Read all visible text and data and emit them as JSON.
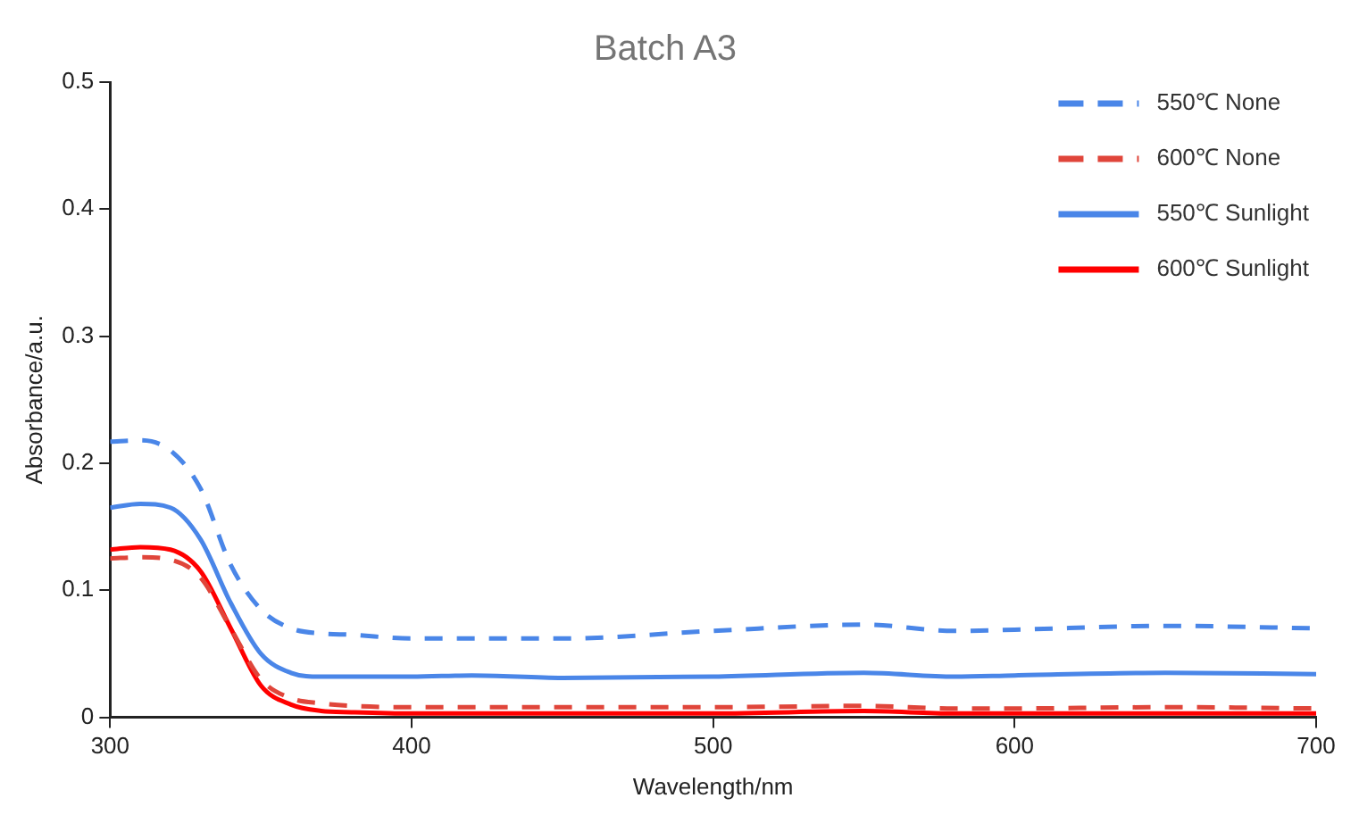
{
  "chart_data": {
    "type": "line",
    "title": "Batch A3",
    "xlabel": "Wavelength/nm",
    "ylabel": "Absorbance/a.u.",
    "x": [
      300,
      310,
      320,
      330,
      340,
      350,
      360,
      370,
      380,
      400,
      420,
      450,
      500,
      550,
      580,
      600,
      650,
      700
    ],
    "xlim": [
      300,
      700
    ],
    "xticks": [
      300,
      400,
      500,
      600,
      700
    ],
    "ylim": [
      0,
      0.5
    ],
    "yticks": [
      0,
      0.1,
      0.2,
      0.3,
      0.4,
      0.5
    ],
    "grid": false,
    "legend": "top right",
    "marker": "none",
    "series": [
      {
        "name": "550℃ None",
        "color": "#4a86e8",
        "line_style": "dashed",
        "values": [
          0.217,
          0.218,
          0.21,
          0.18,
          0.12,
          0.085,
          0.07,
          0.066,
          0.065,
          0.062,
          0.062,
          0.062,
          0.068,
          0.073,
          0.068,
          0.069,
          0.072,
          0.07
        ]
      },
      {
        "name": "600℃ None",
        "color": "#e0453a",
        "line_style": "dashed",
        "values": [
          0.125,
          0.126,
          0.124,
          0.11,
          0.07,
          0.03,
          0.015,
          0.011,
          0.009,
          0.008,
          0.008,
          0.008,
          0.008,
          0.009,
          0.007,
          0.007,
          0.008,
          0.007
        ]
      },
      {
        "name": "550℃ Sunlight",
        "color": "#4a86e8",
        "line_style": "solid",
        "values": [
          0.165,
          0.168,
          0.165,
          0.14,
          0.09,
          0.05,
          0.035,
          0.032,
          0.032,
          0.032,
          0.033,
          0.031,
          0.032,
          0.035,
          0.032,
          0.033,
          0.035,
          0.034
        ]
      },
      {
        "name": "600℃ Sunlight",
        "color": "#ff0000",
        "line_style": "solid",
        "values": [
          0.132,
          0.134,
          0.132,
          0.115,
          0.07,
          0.025,
          0.01,
          0.005,
          0.004,
          0.003,
          0.003,
          0.003,
          0.003,
          0.005,
          0.003,
          0.003,
          0.003,
          0.003
        ]
      }
    ]
  }
}
